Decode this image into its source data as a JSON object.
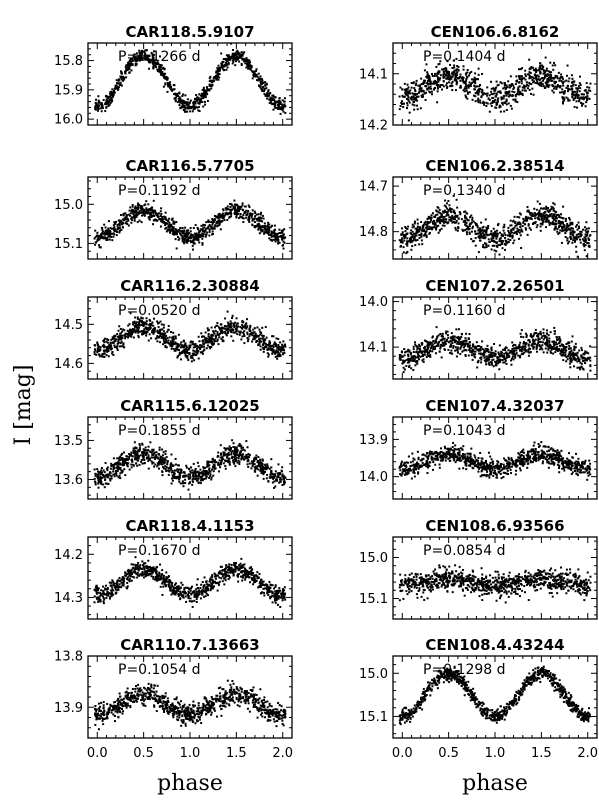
{
  "figure": {
    "ylabel": "I [mag]",
    "xlabel": "phase",
    "x_ticks": [
      "0.0",
      "0.5",
      "1.0",
      "1.5",
      "2.0"
    ]
  },
  "chart_data": [
    {
      "type": "scatter",
      "title": "CAR118.5.9107",
      "period_label": "P=0.1266 d",
      "period_days": 0.1266,
      "ylim": [
        16.02,
        15.74
      ],
      "yticks": [
        "15.8",
        "15.9",
        "16.0"
      ],
      "ytick_values": [
        15.8,
        15.9,
        16.0
      ],
      "mean_mag": 15.87,
      "amplitude": 0.085,
      "scatter": 0.012,
      "xlim": [
        -0.1,
        2.1
      ],
      "xlabel": "phase",
      "grid": false
    },
    {
      "type": "scatter",
      "title": "CEN106.6.8162",
      "period_label": "P=0.1404 d",
      "period_days": 0.1404,
      "ylim": [
        14.2,
        14.04
      ],
      "yticks": [
        "14.1",
        "14.2"
      ],
      "ytick_values": [
        14.1,
        14.2
      ],
      "mean_mag": 14.125,
      "amplitude": 0.02,
      "scatter": 0.014,
      "xlim": [
        -0.1,
        2.1
      ],
      "xlabel": "phase",
      "grid": false
    },
    {
      "type": "scatter",
      "title": "CAR116.5.7705",
      "period_label": "P=0.1192 d",
      "period_days": 0.1192,
      "ylim": [
        15.14,
        14.93
      ],
      "yticks": [
        "15.0",
        "15.1"
      ],
      "ytick_values": [
        15.0,
        15.1
      ],
      "mean_mag": 15.05,
      "amplitude": 0.035,
      "scatter": 0.011,
      "xlim": [
        -0.1,
        2.1
      ],
      "xlabel": "phase",
      "grid": false
    },
    {
      "type": "scatter",
      "title": "CEN106.2.38514",
      "period_label": "P=0.1340 d",
      "period_days": 0.134,
      "ylim": [
        14.86,
        14.68
      ],
      "yticks": [
        "14.7",
        "14.8"
      ],
      "ytick_values": [
        14.7,
        14.8
      ],
      "mean_mag": 14.79,
      "amplitude": 0.025,
      "scatter": 0.014,
      "xlim": [
        -0.1,
        2.1
      ],
      "xlabel": "phase",
      "grid": false
    },
    {
      "type": "scatter",
      "title": "CAR116.2.30884",
      "period_label": "P=0.0520 d",
      "period_days": 0.052,
      "ylim": [
        14.64,
        14.43
      ],
      "yticks": [
        "14.5",
        "14.6"
      ],
      "ytick_values": [
        14.5,
        14.6
      ],
      "mean_mag": 14.535,
      "amplitude": 0.03,
      "scatter": 0.013,
      "xlim": [
        -0.1,
        2.1
      ],
      "xlabel": "phase",
      "grid": false
    },
    {
      "type": "scatter",
      "title": "CEN107.2.26501",
      "period_label": "P=0.1160 d",
      "period_days": 0.116,
      "ylim": [
        14.17,
        13.99
      ],
      "yticks": [
        "14.0",
        "14.1"
      ],
      "ytick_values": [
        14.0,
        14.1
      ],
      "mean_mag": 14.105,
      "amplitude": 0.02,
      "scatter": 0.012,
      "xlim": [
        -0.1,
        2.1
      ],
      "xlabel": "phase",
      "grid": false
    },
    {
      "type": "scatter",
      "title": "CAR115.6.12025",
      "period_label": "P=0.1855 d",
      "period_days": 0.1855,
      "ylim": [
        13.65,
        13.44
      ],
      "yticks": [
        "13.5",
        "13.6"
      ],
      "ytick_values": [
        13.5,
        13.6
      ],
      "mean_mag": 13.565,
      "amplitude": 0.03,
      "scatter": 0.013,
      "xlim": [
        -0.1,
        2.1
      ],
      "xlabel": "phase",
      "grid": false
    },
    {
      "type": "scatter",
      "title": "CEN107.4.32037",
      "period_label": "P=0.1043 d",
      "period_days": 0.1043,
      "ylim": [
        14.06,
        13.84
      ],
      "yticks": [
        "13.9",
        "14.0"
      ],
      "ytick_values": [
        13.9,
        14.0
      ],
      "mean_mag": 13.96,
      "amplitude": 0.02,
      "scatter": 0.012,
      "xlim": [
        -0.1,
        2.1
      ],
      "xlabel": "phase",
      "grid": false
    },
    {
      "type": "scatter",
      "title": "CAR118.4.1153",
      "period_label": "P=0.1670 d",
      "period_days": 0.167,
      "ylim": [
        14.35,
        14.16
      ],
      "yticks": [
        "14.2",
        "14.3"
      ],
      "ytick_values": [
        14.2,
        14.3
      ],
      "mean_mag": 14.265,
      "amplitude": 0.03,
      "scatter": 0.01,
      "xlim": [
        -0.1,
        2.1
      ],
      "xlabel": "phase",
      "grid": false
    },
    {
      "type": "scatter",
      "title": "CEN108.6.93566",
      "period_label": "P=0.0854 d",
      "period_days": 0.0854,
      "ylim": [
        15.15,
        14.95
      ],
      "yticks": [
        "15.0",
        "15.1"
      ],
      "ytick_values": [
        15.0,
        15.1
      ],
      "mean_mag": 15.06,
      "amplitude": 0.008,
      "scatter": 0.013,
      "xlim": [
        -0.1,
        2.1
      ],
      "xlabel": "phase",
      "grid": false
    },
    {
      "type": "scatter",
      "title": "CAR110.7.13663",
      "period_label": "P=0.1054 d",
      "period_days": 0.1054,
      "ylim": [
        13.96,
        13.8
      ],
      "yticks": [
        "13.8",
        "13.9"
      ],
      "ytick_values": [
        13.8,
        13.9
      ],
      "mean_mag": 13.895,
      "amplitude": 0.02,
      "scatter": 0.01,
      "xlim": [
        -0.1,
        2.1
      ],
      "xlabel": "phase",
      "grid": false
    },
    {
      "type": "scatter",
      "title": "CEN108.4.43244",
      "period_label": "P=0.1298 d",
      "period_days": 0.1298,
      "ylim": [
        15.15,
        14.96
      ],
      "yticks": [
        "15.0",
        "15.1"
      ],
      "ytick_values": [
        15.0,
        15.1
      ],
      "mean_mag": 15.05,
      "amplitude": 0.05,
      "scatter": 0.008,
      "xlim": [
        -0.1,
        2.1
      ],
      "xlabel": "phase",
      "grid": false
    }
  ]
}
